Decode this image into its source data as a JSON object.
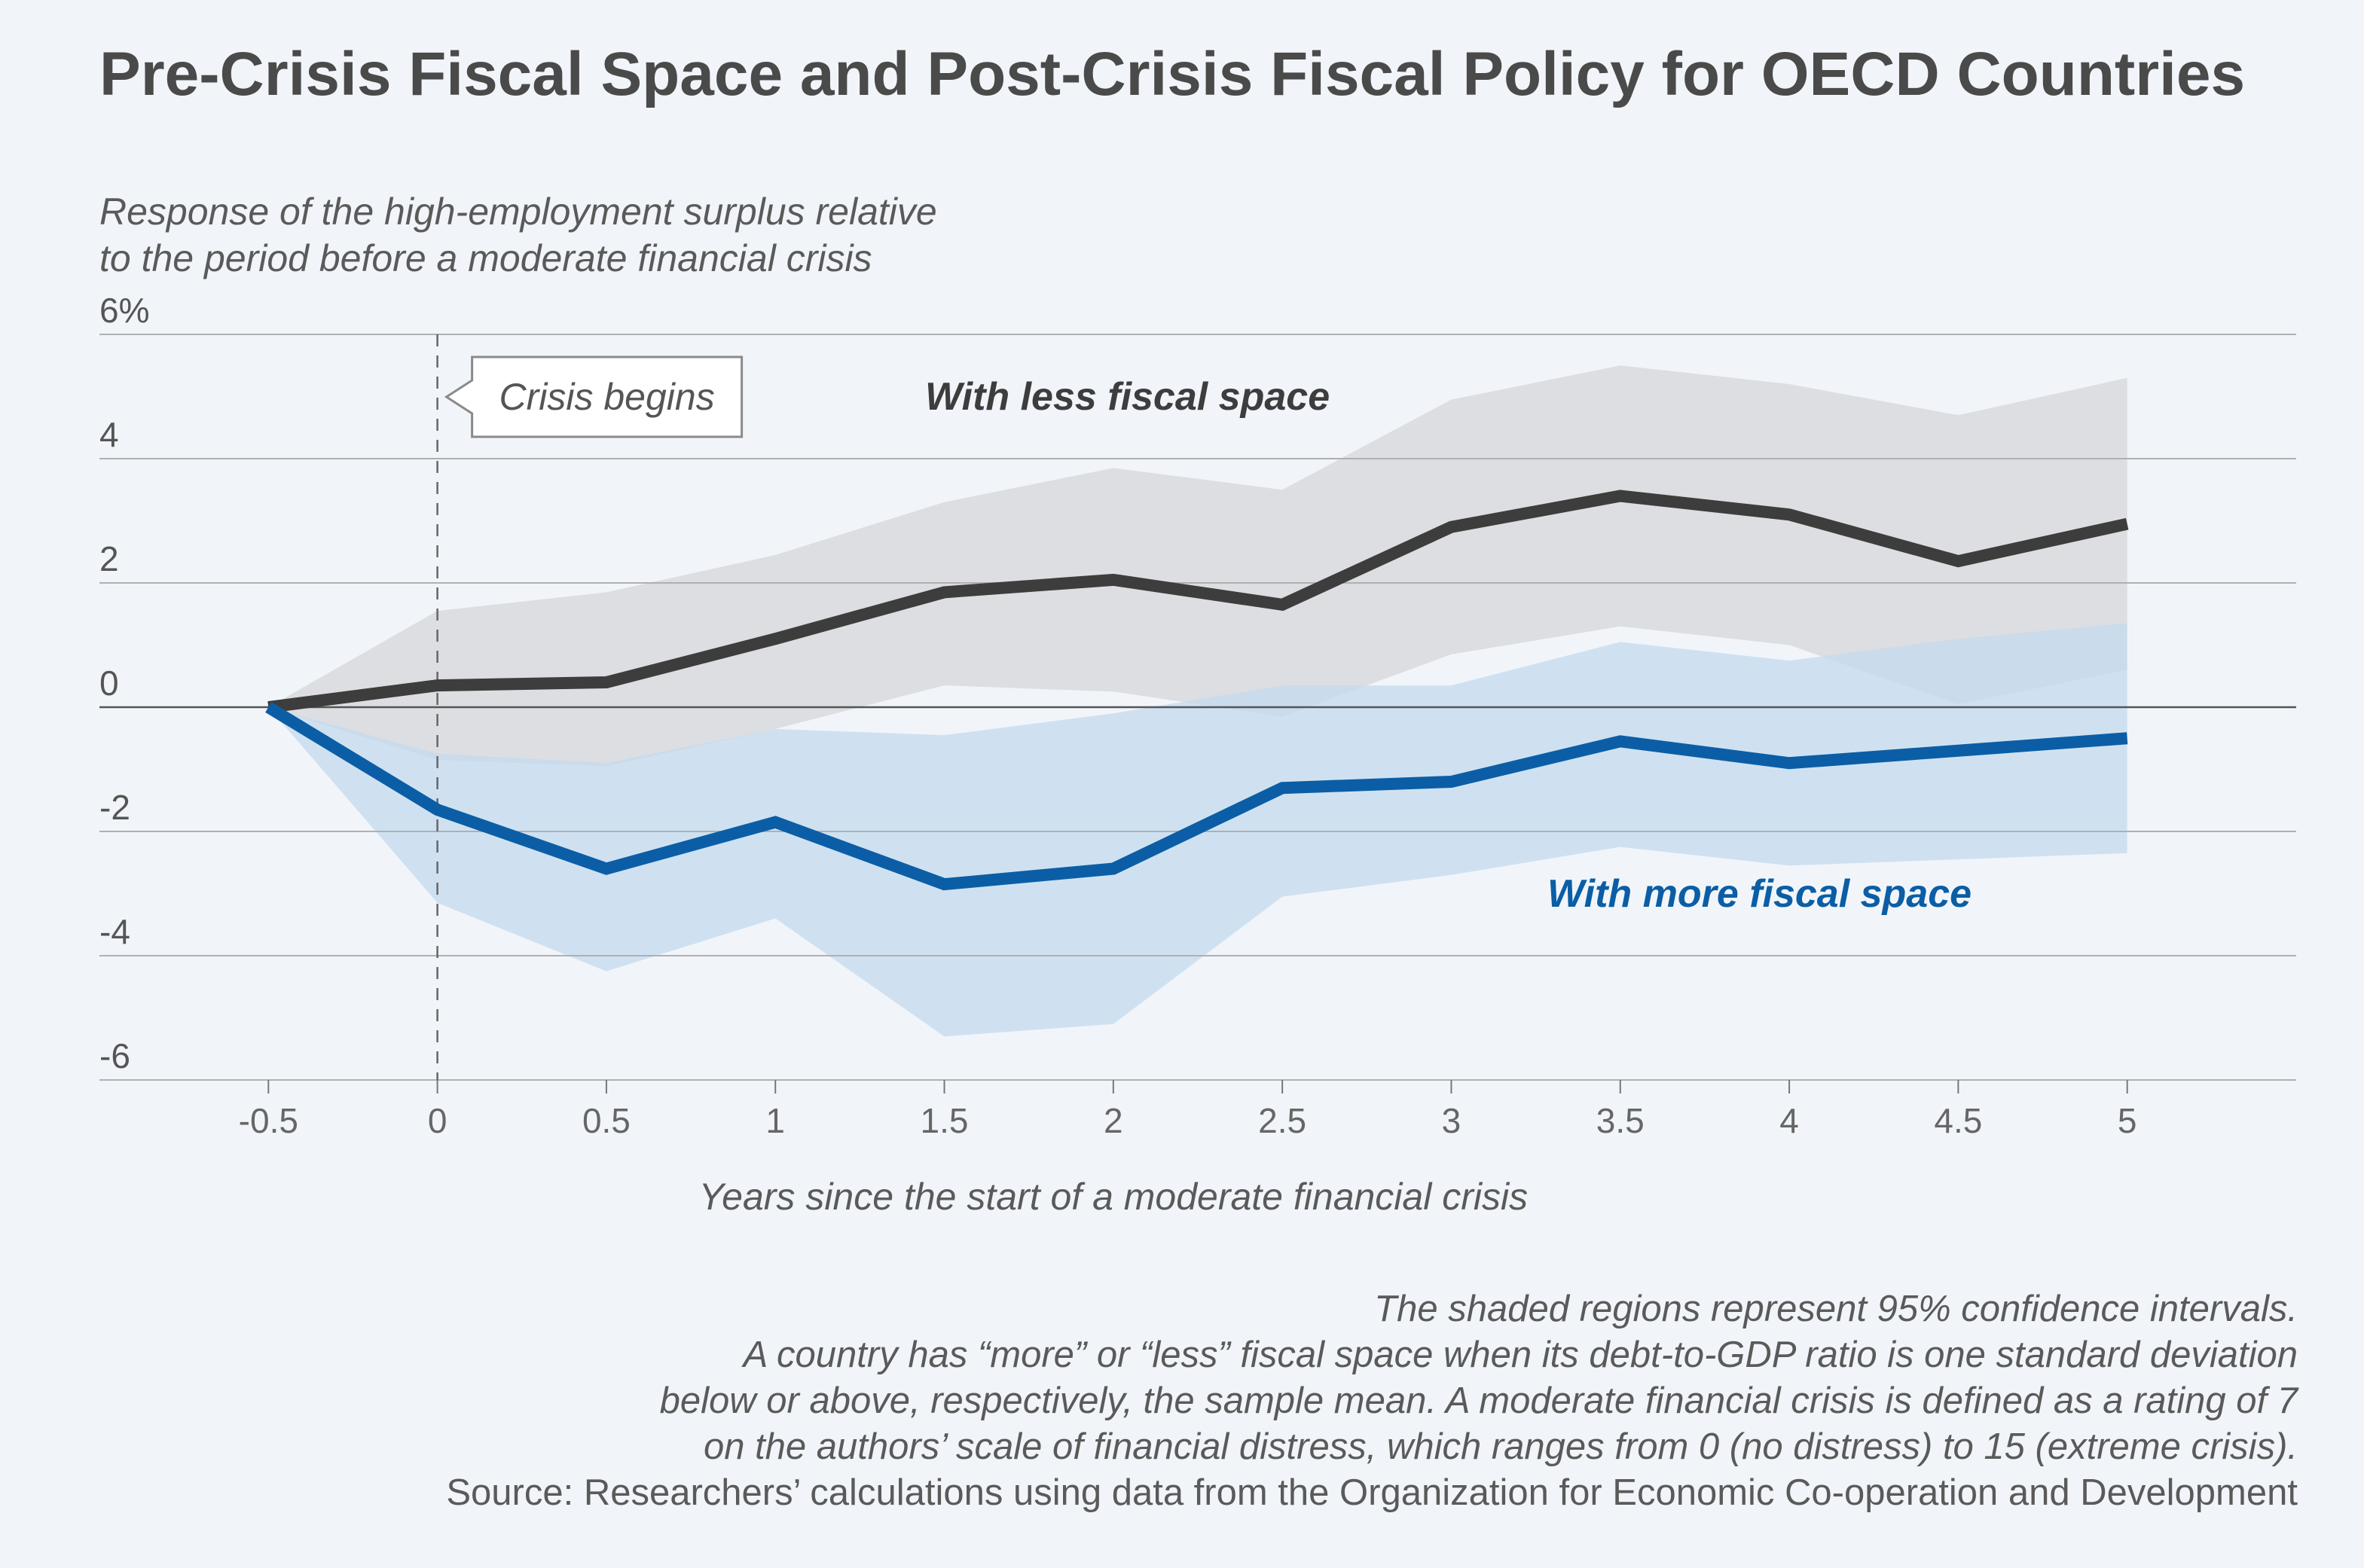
{
  "title": "Pre-Crisis Fiscal Space and Post-Crisis Fiscal Policy for OECD Countries",
  "subtitle_line1": "Response of the high-employment surplus relative",
  "subtitle_line2": "to the period before a moderate financial crisis",
  "annotation": "Crisis begins",
  "notes": [
    "The shaded regions represent 95% confidence intervals.",
    "A country has “more” or “less” fiscal space when its debt-to-GDP ratio is one standard deviation",
    "below or above, respectively, the sample mean. A moderate financial crisis is defined as a rating of 7",
    "on the authors’ scale of financial distress, which ranges from 0 (no distress) to 15 (extreme crisis)."
  ],
  "source": "Source: Researchers’ calculations using data from the Organization for Economic Co-operation and Development",
  "colors": {
    "less_line": "#3d3d3d",
    "less_band": "#d9d9dc",
    "more_line": "#0b5ea5",
    "more_band": "#c3daee",
    "grid": "#b0b0b0",
    "zero": "#555555"
  },
  "chart_data": {
    "type": "line",
    "xlabel": "Years since the start of a moderate financial crisis",
    "x": [
      -0.5,
      0,
      0.5,
      1,
      1.5,
      2,
      2.5,
      3,
      3.5,
      4,
      4.5,
      5
    ],
    "x_tick_labels": [
      "-0.5",
      "0",
      "0.5",
      "1",
      "1.5",
      "2",
      "2.5",
      "3",
      "3.5",
      "4",
      "4.5",
      "5"
    ],
    "xlim": [
      -1.0,
      5.5
    ],
    "ylim": [
      -6,
      6
    ],
    "y_ticks": [
      -6,
      -4,
      -2,
      0,
      2,
      4,
      6
    ],
    "y_tick_labels": [
      "-6",
      "-4",
      "-2",
      "0",
      "2",
      "4",
      "6%"
    ],
    "grid": true,
    "crisis_start_x": 0,
    "series": [
      {
        "name": "With less fiscal space",
        "values": [
          0,
          0.35,
          0.4,
          1.1,
          1.85,
          2.05,
          1.65,
          2.9,
          3.4,
          3.1,
          2.35,
          2.95
        ],
        "lower": [
          0,
          -0.85,
          -0.95,
          -0.35,
          0.35,
          0.25,
          -0.15,
          0.85,
          1.3,
          1.0,
          0.05,
          0.6
        ],
        "upper": [
          0,
          1.55,
          1.85,
          2.45,
          3.3,
          3.85,
          3.5,
          4.95,
          5.5,
          5.2,
          4.7,
          5.3
        ]
      },
      {
        "name": "With more fiscal space",
        "values": [
          0,
          -1.65,
          -2.6,
          -1.85,
          -2.85,
          -2.6,
          -1.3,
          -1.2,
          -0.55,
          -0.9,
          -0.7,
          -0.5
        ],
        "lower": [
          0,
          -3.15,
          -4.25,
          -3.4,
          -5.3,
          -5.1,
          -3.05,
          -2.7,
          -2.25,
          -2.55,
          -2.45,
          -2.35
        ],
        "upper": [
          0,
          -0.75,
          -0.9,
          -0.35,
          -0.45,
          -0.1,
          0.35,
          0.35,
          1.05,
          0.75,
          1.1,
          1.35
        ]
      }
    ]
  }
}
